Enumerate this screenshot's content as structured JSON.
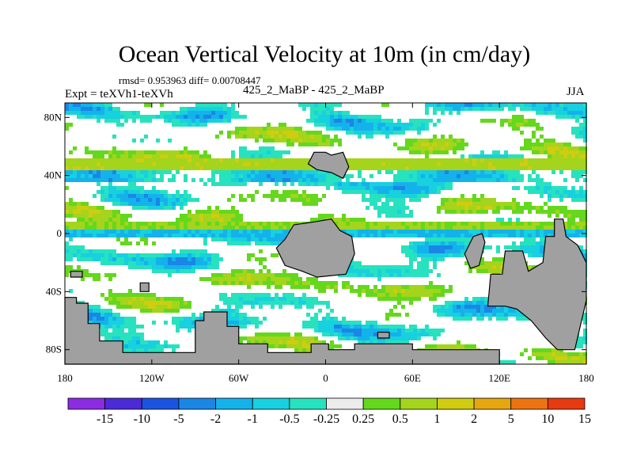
{
  "chart_data": {
    "type": "heatmap",
    "title": "Ocean Vertical Velocity at 10m (in cm/day)",
    "stats_text": "rmsd= 0.953963 diff= 0.00708447",
    "experiment_text": "Expt = teXVh1-teXVh",
    "case_text": "425_2_MaBP - 425_2_MaBP",
    "season": "JJA",
    "x_ticks": [
      "180",
      "120W",
      "60W",
      "0",
      "60E",
      "120E",
      "180"
    ],
    "y_ticks": [
      "80N",
      "40N",
      "0",
      "40S",
      "80S"
    ],
    "x_range": [
      -180,
      180
    ],
    "y_range": [
      -90,
      90
    ],
    "colorbar": {
      "labels": [
        "-15",
        "-10",
        "-5",
        "-2",
        "-1",
        "-0.5",
        "-0.25",
        "0.25",
        "0.5",
        "1",
        "2",
        "5",
        "10",
        "15"
      ],
      "colors": [
        "#8b2be2",
        "#4b2ad8",
        "#1b54e0",
        "#1a86e6",
        "#14b2ea",
        "#17d0e0",
        "#27e2be",
        "#ececec",
        "#64d81c",
        "#a4d41c",
        "#d0cc10",
        "#e6a610",
        "#ec7410",
        "#e83a10"
      ]
    },
    "land_color": "#a0a0a0"
  }
}
